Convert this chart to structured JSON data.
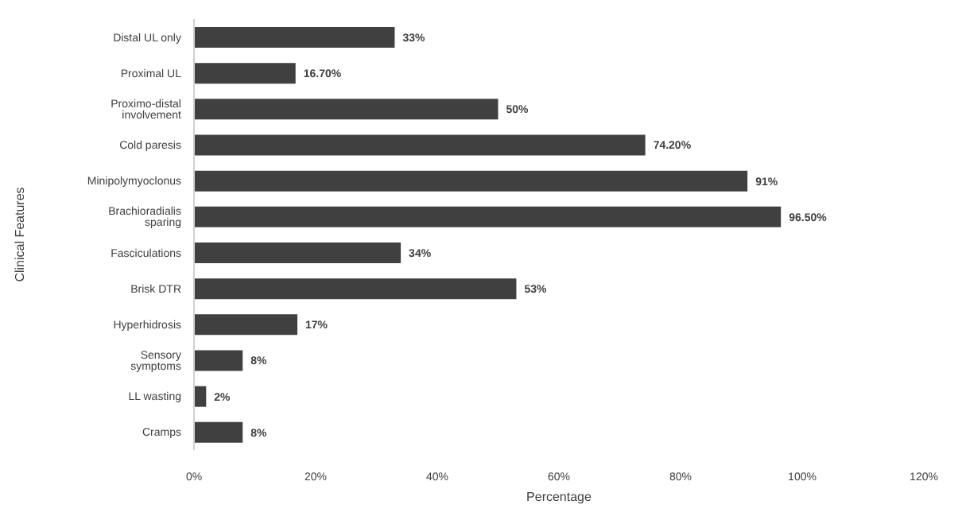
{
  "chart_data": {
    "type": "bar",
    "orientation": "horizontal",
    "ylabel": "Clinical Features",
    "xlabel": "Percentage",
    "categories": [
      "Distal UL only",
      "Proximal UL",
      "Proximo-distal involvement",
      "Cold paresis",
      "Minipolymyoclonus",
      "Brachioradialis sparing",
      "Fasciculations",
      "Brisk DTR",
      "Hyperhidrosis",
      "Sensory symptoms",
      "LL wasting",
      "Cramps"
    ],
    "values": [
      33,
      16.7,
      50,
      74.2,
      91,
      96.5,
      34,
      53,
      17,
      8,
      2,
      8
    ],
    "value_labels": [
      "33%",
      "16.70%",
      "50%",
      "74.20%",
      "91%",
      "96.50%",
      "34%",
      "53%",
      "17%",
      "8%",
      "2%",
      "8%"
    ],
    "color": "#404040",
    "xlim": [
      0,
      120
    ],
    "xticks": [
      {
        "value": 0,
        "label": "0%"
      },
      {
        "value": 20,
        "label": "20%"
      },
      {
        "value": 40,
        "label": "40%"
      },
      {
        "value": 60,
        "label": "60%"
      },
      {
        "value": 80,
        "label": "80%"
      },
      {
        "value": 100,
        "label": "100%"
      },
      {
        "value": 120,
        "label": "120%"
      }
    ],
    "grid": false,
    "legend": false
  }
}
